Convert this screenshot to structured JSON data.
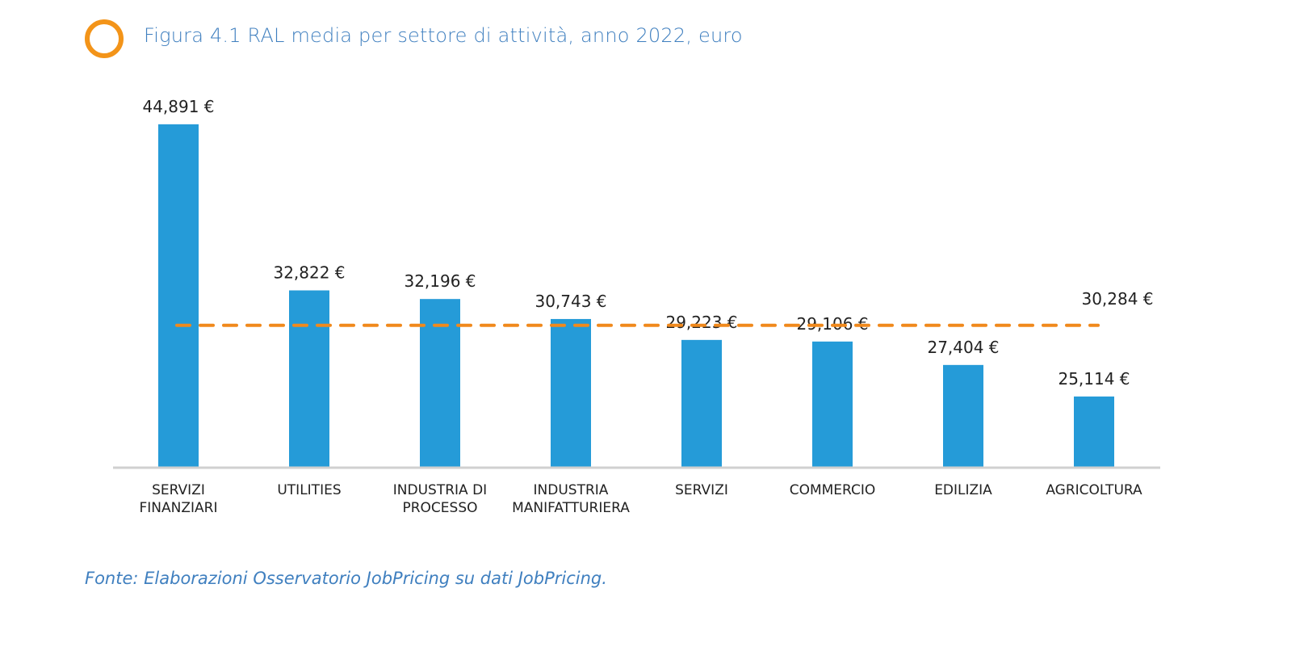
{
  "header": {
    "title": "Figura 4.1 RAL media per settore di attività, anno 2022, euro"
  },
  "footer": {
    "source": "Fonte: Elaborazioni Osservatorio JobPricing su dati JobPricing."
  },
  "colors": {
    "bar": "#259bd8",
    "average_line": "#f0891c",
    "axis": "#d0d0d0",
    "accent_ring": "#f39419",
    "title": "#3f7fbf"
  },
  "chart_data": {
    "type": "bar",
    "title": "Figura 4.1 RAL media per settore di attività, anno 2022, euro",
    "xlabel": "",
    "ylabel": "",
    "ylim": [
      20000,
      46500
    ],
    "grid": false,
    "categories": [
      "SERVIZI\nFINANZIARI",
      "UTILITIES",
      "INDUSTRIA DI\nPROCESSO",
      "INDUSTRIA\nMANIFATTURIERA",
      "SERVIZI",
      "COMMERCIO",
      "EDILIZIA",
      "AGRICOLTURA"
    ],
    "values": [
      44891,
      32822,
      32196,
      30743,
      29223,
      29106,
      27404,
      25114
    ],
    "value_labels": [
      "44,891 €",
      "32,822 €",
      "32,196 €",
      "30,743 €",
      "29,223 €",
      "29,106 €",
      "27,404 €",
      "25,114 €"
    ],
    "average": {
      "value": 30284,
      "label": "30,284 €",
      "style": "dashed"
    }
  }
}
